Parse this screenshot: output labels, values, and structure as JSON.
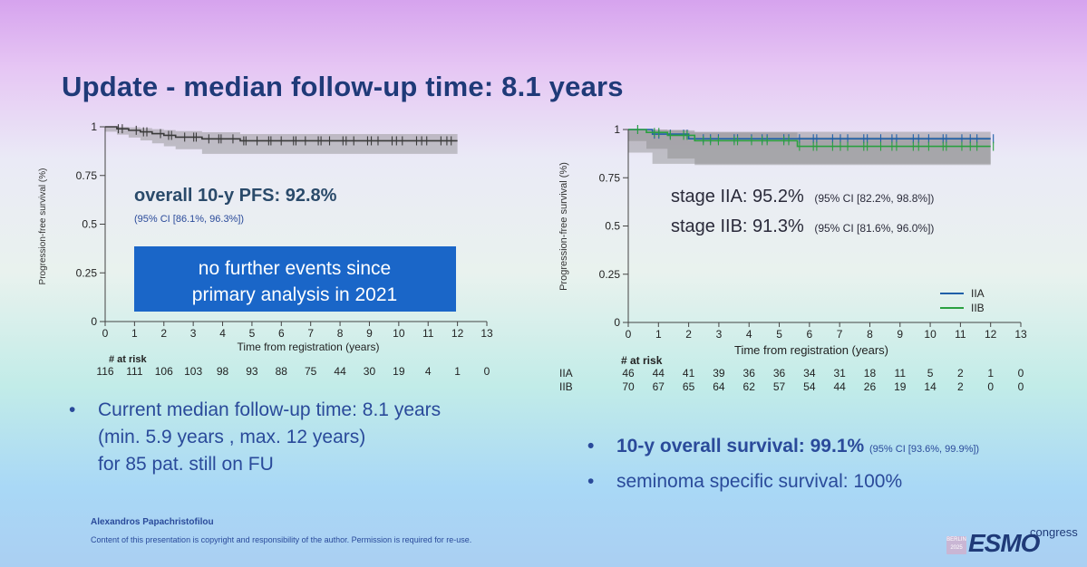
{
  "slide": {
    "title": "Update - median follow-up time: 8.1 years",
    "author": "Alexandros Papachristofilou",
    "copyright": "Content of this presentation is copyright and responsibility of the author. Permission is required for re-use.",
    "logo": {
      "city": "BERLIN",
      "year": "2025",
      "brand": "ESMO",
      "suffix": "congress"
    }
  },
  "left_panel": {
    "pfs_label": "overall 10-y PFS: 92.8%",
    "pfs_ci": "(95% CI [86.1%, 96.3%])",
    "callout_line1": "no further events since",
    "callout_line2": "primary analysis in 2021",
    "bullet_line1": "Current median follow-up time: 8.1 years",
    "bullet_line2": "(min. 5.9 years , max. 12 years)",
    "bullet_line3": "for 85 pat. still on FU"
  },
  "right_panel": {
    "iia_label": "stage IIA: 95.2%",
    "iia_ci": "(95% CI [82.2%, 98.8%])",
    "iib_label": "stage IIB: 91.3%",
    "iib_ci": "(95% CI [81.6%, 96.0%])",
    "os_label": "10-y overall survival: 99.1%",
    "os_ci": "(95% CI [93.6%, 99.9%])",
    "sss_label": "seminoma specific survival: 100%"
  },
  "chart_data": [
    {
      "type": "line",
      "ylabel": "Progression-free survival (%)",
      "xlabel": "Time from registration (years)",
      "xlim": [
        0,
        13
      ],
      "ylim": [
        0,
        1
      ],
      "xticks": [
        "0",
        "1",
        "2",
        "3",
        "4",
        "5",
        "6",
        "7",
        "8",
        "9",
        "10",
        "11",
        "12",
        "13"
      ],
      "yticks": [
        "0",
        "0.25",
        "0.5",
        "0.75",
        "1"
      ],
      "risk_title": "# at risk",
      "risk_rows": [
        {
          "label": "",
          "values": [
            "116",
            "111",
            "106",
            "103",
            "98",
            "93",
            "88",
            "75",
            "44",
            "30",
            "19",
            "4",
            "1",
            "0"
          ]
        }
      ],
      "series": [
        {
          "name": "overall",
          "color": "#3a3a3a",
          "x": [
            0,
            0.4,
            0.8,
            1.2,
            1.6,
            2.0,
            2.4,
            3.3,
            4.6,
            12
          ],
          "y": [
            1,
            0.99,
            0.982,
            0.974,
            0.965,
            0.956,
            0.947,
            0.938,
            0.928,
            0.928
          ],
          "ci_lower": [
            1,
            0.975,
            0.96,
            0.945,
            0.93,
            0.915,
            0.9,
            0.885,
            0.861,
            0.861
          ],
          "ci_upper": [
            1,
            1,
            0.997,
            0.993,
            0.988,
            0.983,
            0.978,
            0.972,
            0.963,
            0.963
          ]
        }
      ]
    },
    {
      "type": "line",
      "ylabel": "Progression-free survival (%)",
      "xlabel": "Time from registration (years)",
      "xlim": [
        0,
        13
      ],
      "ylim": [
        0,
        1
      ],
      "xticks": [
        "0",
        "1",
        "2",
        "3",
        "4",
        "5",
        "6",
        "7",
        "8",
        "9",
        "10",
        "11",
        "12",
        "13"
      ],
      "yticks": [
        "0",
        "0.25",
        "0.5",
        "0.75",
        "1"
      ],
      "risk_title": "# at risk",
      "risk_rows": [
        {
          "label": "IIA",
          "values": [
            "46",
            "44",
            "41",
            "39",
            "36",
            "36",
            "34",
            "31",
            "18",
            "11",
            "5",
            "2",
            "1",
            "0"
          ]
        },
        {
          "label": "IIB",
          "values": [
            "70",
            "67",
            "65",
            "64",
            "62",
            "57",
            "54",
            "44",
            "26",
            "19",
            "14",
            "2",
            "0",
            "0"
          ]
        }
      ],
      "legend": [
        {
          "name": "IIA",
          "color": "#1f5fa8"
        },
        {
          "name": "IIB",
          "color": "#2aa040"
        }
      ],
      "series": [
        {
          "name": "IIA",
          "color": "#1f5fa8",
          "x": [
            0,
            0.8,
            2.0,
            12
          ],
          "y": [
            1,
            0.976,
            0.952,
            0.952
          ],
          "ci_lower": [
            1,
            0.88,
            0.822,
            0.822
          ],
          "ci_upper": [
            1,
            0.998,
            0.988,
            0.988
          ]
        },
        {
          "name": "IIB",
          "color": "#2aa040",
          "x": [
            0,
            0.6,
            1.3,
            2.2,
            5.6,
            12
          ],
          "y": [
            1,
            0.985,
            0.97,
            0.942,
            0.913,
            0.913
          ],
          "ci_lower": [
            1,
            0.94,
            0.9,
            0.85,
            0.816,
            0.816
          ],
          "ci_upper": [
            1,
            1,
            0.996,
            0.985,
            0.96,
            0.96
          ]
        }
      ]
    }
  ]
}
